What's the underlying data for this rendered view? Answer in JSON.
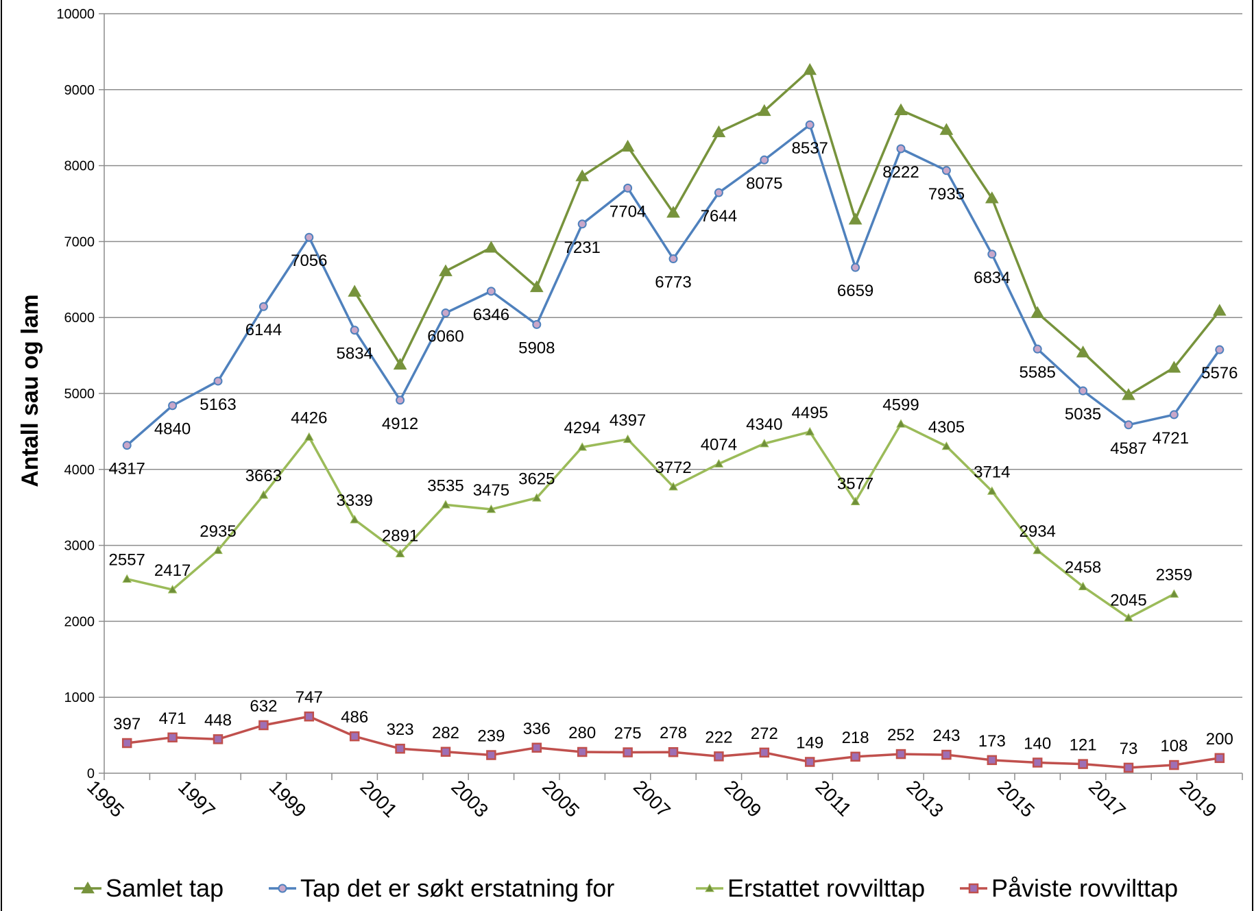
{
  "chart_data": {
    "type": "line",
    "title": "",
    "xlabel": "",
    "ylabel": "Antall sau og lam",
    "ylim": [
      0,
      10000
    ],
    "yticks": [
      0,
      1000,
      2000,
      3000,
      4000,
      5000,
      6000,
      7000,
      8000,
      9000,
      10000
    ],
    "x": [
      1995,
      1996,
      1997,
      1998,
      1999,
      2000,
      2001,
      2002,
      2003,
      2004,
      2005,
      2006,
      2007,
      2008,
      2009,
      2010,
      2011,
      2012,
      2013,
      2014,
      2015,
      2016,
      2017,
      2018,
      2019
    ],
    "xtick_labels": [
      "1995",
      "1997",
      "1999",
      "2001",
      "2003",
      "2005",
      "2007",
      "2009",
      "2011",
      "2013",
      "2015",
      "2017",
      "2019"
    ],
    "grid": true,
    "legend_position": "bottom",
    "series": [
      {
        "name": "Samlet tap",
        "color": "#77933c",
        "marker": "triangle",
        "labeled": false,
        "values": [
          null,
          null,
          null,
          null,
          null,
          6340,
          5380,
          6610,
          6920,
          6400,
          7860,
          8250,
          7380,
          8440,
          8720,
          9260,
          7290,
          8730,
          8470,
          7570,
          6060,
          5540,
          4980,
          5340,
          6090
        ]
      },
      {
        "name": "Tap det er søkt erstatning for",
        "color": "#4f81bd",
        "marker": "circle",
        "labeled": true,
        "values": [
          4317,
          4840,
          5163,
          6144,
          7056,
          5834,
          4912,
          6060,
          6346,
          5908,
          7231,
          7704,
          6773,
          7644,
          8075,
          8537,
          6659,
          8222,
          7935,
          6834,
          5585,
          5035,
          4587,
          4721,
          5576
        ]
      },
      {
        "name": "Erstattet rovvilttap",
        "color": "#9bbb59",
        "marker": "triangle-small",
        "labeled": true,
        "values": [
          2557,
          2417,
          2935,
          3663,
          4426,
          3339,
          2891,
          3535,
          3475,
          3625,
          4294,
          4397,
          3772,
          4074,
          4340,
          4495,
          3577,
          4599,
          4305,
          3714,
          2934,
          2458,
          2045,
          2359,
          null
        ]
      },
      {
        "name": "Påviste rovvilttap",
        "color": "#c0504d",
        "marker": "square",
        "labeled": true,
        "values": [
          397,
          471,
          448,
          632,
          747,
          486,
          323,
          282,
          239,
          336,
          280,
          275,
          278,
          222,
          272,
          149,
          218,
          252,
          243,
          173,
          140,
          121,
          73,
          108,
          200
        ]
      }
    ]
  }
}
